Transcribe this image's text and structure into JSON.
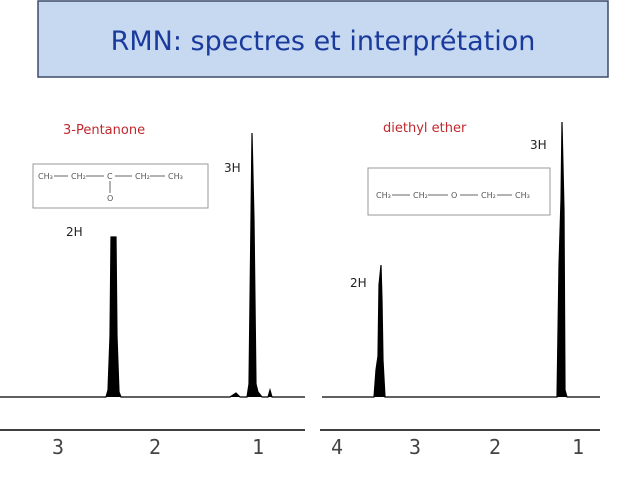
{
  "header": {
    "title": "RMN: spectres et interprétation"
  },
  "spectra": [
    {
      "compound": "3-Pentanone",
      "structure": {
        "groups": [
          "CH₃",
          "CH₂",
          "C",
          "CH₂",
          "CH₃"
        ],
        "substituent": "O"
      },
      "peak_labels": [
        "2H",
        "3H"
      ],
      "axis_labels": [
        "3",
        "2",
        "1"
      ]
    },
    {
      "compound": "diethyl ether",
      "structure": {
        "groups": [
          "CH₃",
          "CH₂",
          "O",
          "CH₂",
          "CH₃"
        ]
      },
      "peak_labels": [
        "2H",
        "3H"
      ],
      "axis_labels": [
        "4",
        "3",
        "2",
        "1"
      ]
    }
  ]
}
